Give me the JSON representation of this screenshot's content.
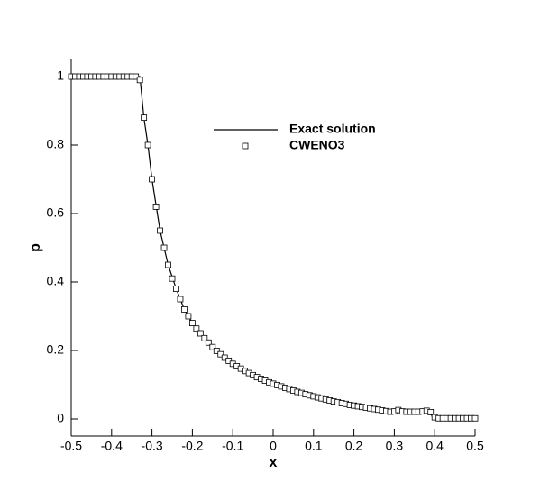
{
  "chart_data": {
    "type": "line",
    "xlabel": "x",
    "ylabel": "p",
    "xlim": [
      -0.5,
      0.5
    ],
    "ylim": [
      -0.05,
      1.05
    ],
    "xticks": [
      -0.5,
      -0.4,
      -0.3,
      -0.2,
      -0.1,
      0,
      0.1,
      0.2,
      0.3,
      0.4,
      0.5
    ],
    "yticks": [
      0,
      0.2,
      0.4,
      0.6,
      0.8,
      1
    ],
    "series": [
      {
        "name": "Exact solution",
        "type": "line",
        "color": "#000000",
        "x": [
          -0.5,
          -0.33,
          -0.32,
          -0.31,
          -0.3,
          -0.28,
          -0.26,
          -0.24,
          -0.22,
          -0.2,
          -0.15,
          -0.1,
          -0.05,
          0,
          0.05,
          0.1,
          0.15,
          0.2,
          0.25,
          0.29,
          0.3,
          0.39,
          0.395,
          0.5
        ],
        "values": [
          1,
          1,
          0.88,
          0.8,
          0.7,
          0.55,
          0.45,
          0.38,
          0.32,
          0.28,
          0.21,
          0.161,
          0.128,
          0.103,
          0.083,
          0.066,
          0.051,
          0.039,
          0.029,
          0.021,
          0.021,
          0.019,
          0.002,
          0.002
        ]
      },
      {
        "name": "CWENO3",
        "type": "scatter",
        "marker": "square",
        "color": "#000000",
        "x": [
          -0.5,
          -0.49,
          -0.48,
          -0.47,
          -0.46,
          -0.45,
          -0.44,
          -0.43,
          -0.42,
          -0.41,
          -0.4,
          -0.39,
          -0.38,
          -0.37,
          -0.36,
          -0.35,
          -0.34,
          -0.33,
          -0.32,
          -0.31,
          -0.3,
          -0.29,
          -0.28,
          -0.27,
          -0.26,
          -0.25,
          -0.24,
          -0.23,
          -0.22,
          -0.21,
          -0.2,
          -0.19,
          -0.18,
          -0.17,
          -0.16,
          -0.15,
          -0.14,
          -0.13,
          -0.12,
          -0.11,
          -0.1,
          -0.09,
          -0.08,
          -0.07,
          -0.06,
          -0.05,
          -0.04,
          -0.03,
          -0.02,
          -0.01,
          0,
          0.01,
          0.02,
          0.03,
          0.04,
          0.05,
          0.06,
          0.07,
          0.08,
          0.09,
          0.1,
          0.11,
          0.12,
          0.13,
          0.14,
          0.15,
          0.16,
          0.17,
          0.18,
          0.19,
          0.2,
          0.21,
          0.22,
          0.23,
          0.24,
          0.25,
          0.26,
          0.27,
          0.28,
          0.29,
          0.3,
          0.31,
          0.32,
          0.33,
          0.34,
          0.35,
          0.36,
          0.37,
          0.38,
          0.39,
          0.4,
          0.41,
          0.42,
          0.43,
          0.44,
          0.45,
          0.46,
          0.47,
          0.48,
          0.49,
          0.5
        ],
        "values": [
          1,
          1,
          1,
          1,
          1,
          1,
          1,
          1,
          1,
          1,
          1,
          1,
          1,
          1,
          1,
          1,
          1,
          0.99,
          0.88,
          0.8,
          0.7,
          0.62,
          0.55,
          0.5,
          0.45,
          0.41,
          0.38,
          0.35,
          0.32,
          0.3,
          0.28,
          0.264,
          0.25,
          0.236,
          0.223,
          0.21,
          0.199,
          0.189,
          0.179,
          0.17,
          0.161,
          0.154,
          0.147,
          0.14,
          0.134,
          0.128,
          0.122,
          0.117,
          0.112,
          0.107,
          0.103,
          0.099,
          0.095,
          0.091,
          0.087,
          0.083,
          0.079,
          0.076,
          0.072,
          0.069,
          0.066,
          0.063,
          0.06,
          0.057,
          0.054,
          0.051,
          0.049,
          0.046,
          0.044,
          0.041,
          0.039,
          0.037,
          0.035,
          0.033,
          0.031,
          0.029,
          0.027,
          0.025,
          0.023,
          0.021,
          0.022,
          0.026,
          0.022,
          0.021,
          0.021,
          0.021,
          0.021,
          0.022,
          0.024,
          0.02,
          0.005,
          0.002,
          0.002,
          0.002,
          0.002,
          0.002,
          0.002,
          0.002,
          0.002,
          0.002,
          0.002
        ]
      }
    ]
  }
}
